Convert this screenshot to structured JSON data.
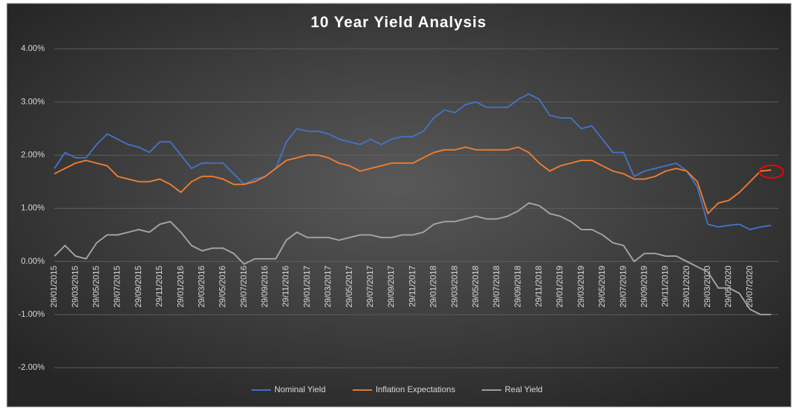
{
  "chart_data": {
    "type": "line",
    "title": "10 Year Yield Analysis",
    "categories": [
      "29/01/2015",
      null,
      "29/03/2015",
      null,
      "29/05/2015",
      null,
      "29/07/2015",
      null,
      "29/09/2015",
      null,
      "29/11/2015",
      null,
      "29/01/2016",
      null,
      "29/03/2016",
      null,
      "29/05/2016",
      null,
      "29/07/2016",
      null,
      "29/09/2016",
      null,
      "29/11/2016",
      null,
      "29/01/2017",
      null,
      "29/03/2017",
      null,
      "29/05/2017",
      null,
      "29/07/2017",
      null,
      "29/09/2017",
      null,
      "29/11/2017",
      null,
      "29/01/2018",
      null,
      "29/03/2018",
      null,
      "29/05/2018",
      null,
      "29/07/2018",
      null,
      "29/09/2018",
      null,
      "29/11/2018",
      null,
      "29/01/2019",
      null,
      "29/03/2019",
      null,
      "29/05/2019",
      null,
      "29/07/2019",
      null,
      "29/09/2019",
      null,
      "29/11/2019",
      null,
      "29/01/2020",
      null,
      "29/03/2020",
      null,
      "29/05/2020",
      null,
      "29/07/2020",
      null,
      null
    ],
    "series": [
      {
        "name": "Nominal Yield",
        "color": "#4472c4",
        "values": [
          1.75,
          2.05,
          1.95,
          1.95,
          2.2,
          2.4,
          2.3,
          2.2,
          2.15,
          2.05,
          2.25,
          2.25,
          2.0,
          1.75,
          1.85,
          1.85,
          1.85,
          1.65,
          1.45,
          1.55,
          1.6,
          1.75,
          2.25,
          2.5,
          2.45,
          2.45,
          2.4,
          2.3,
          2.25,
          2.2,
          2.3,
          2.2,
          2.3,
          2.35,
          2.35,
          2.45,
          2.7,
          2.85,
          2.8,
          2.95,
          3.0,
          2.9,
          2.9,
          2.9,
          3.05,
          3.15,
          3.05,
          2.75,
          2.7,
          2.7,
          2.5,
          2.55,
          2.3,
          2.05,
          2.05,
          1.6,
          1.7,
          1.75,
          1.8,
          1.85,
          1.7,
          1.4,
          0.7,
          0.65,
          0.68,
          0.7,
          0.6,
          0.65,
          0.68
        ]
      },
      {
        "name": "Inflation Expectations",
        "color": "#ed7d31",
        "values": [
          1.65,
          1.75,
          1.85,
          1.9,
          1.85,
          1.8,
          1.6,
          1.55,
          1.5,
          1.5,
          1.55,
          1.45,
          1.3,
          1.5,
          1.6,
          1.6,
          1.55,
          1.45,
          1.45,
          1.5,
          1.6,
          1.75,
          1.9,
          1.95,
          2.0,
          2.0,
          1.95,
          1.85,
          1.8,
          1.7,
          1.75,
          1.8,
          1.85,
          1.85,
          1.85,
          1.95,
          2.05,
          2.1,
          2.1,
          2.15,
          2.1,
          2.1,
          2.1,
          2.1,
          2.15,
          2.05,
          1.85,
          1.7,
          1.8,
          1.85,
          1.9,
          1.9,
          1.8,
          1.7,
          1.65,
          1.55,
          1.55,
          1.6,
          1.7,
          1.75,
          1.7,
          1.5,
          0.9,
          1.1,
          1.15,
          1.3,
          1.5,
          1.7,
          1.72
        ]
      },
      {
        "name": "Real Yield",
        "color": "#a5a5a5",
        "values": [
          0.1,
          0.3,
          0.1,
          0.05,
          0.35,
          0.5,
          0.5,
          0.55,
          0.6,
          0.55,
          0.7,
          0.75,
          0.55,
          0.3,
          0.2,
          0.25,
          0.25,
          0.15,
          -0.05,
          0.05,
          0.05,
          0.05,
          0.4,
          0.55,
          0.45,
          0.45,
          0.45,
          0.4,
          0.45,
          0.5,
          0.5,
          0.45,
          0.45,
          0.5,
          0.5,
          0.55,
          0.7,
          0.75,
          0.75,
          0.8,
          0.85,
          0.8,
          0.8,
          0.85,
          0.95,
          1.1,
          1.05,
          0.9,
          0.85,
          0.75,
          0.6,
          0.6,
          0.5,
          0.35,
          0.3,
          0.0,
          0.15,
          0.15,
          0.1,
          0.1,
          0.0,
          -0.1,
          -0.2,
          -0.5,
          -0.5,
          -0.6,
          -0.9,
          -1.0,
          -1.0
        ]
      }
    ],
    "ylim": [
      -2,
      4
    ],
    "yticks": [
      {
        "value": -2,
        "label": "-2.00%"
      },
      {
        "value": -1,
        "label": "-1.00%"
      },
      {
        "value": 0,
        "label": "0.00%"
      },
      {
        "value": 1,
        "label": "1.00%"
      },
      {
        "value": 2,
        "label": "2.00%"
      },
      {
        "value": 3,
        "label": "3.00%"
      },
      {
        "value": 4,
        "label": "4.00%"
      }
    ],
    "grid": true,
    "legend": "bottom"
  }
}
